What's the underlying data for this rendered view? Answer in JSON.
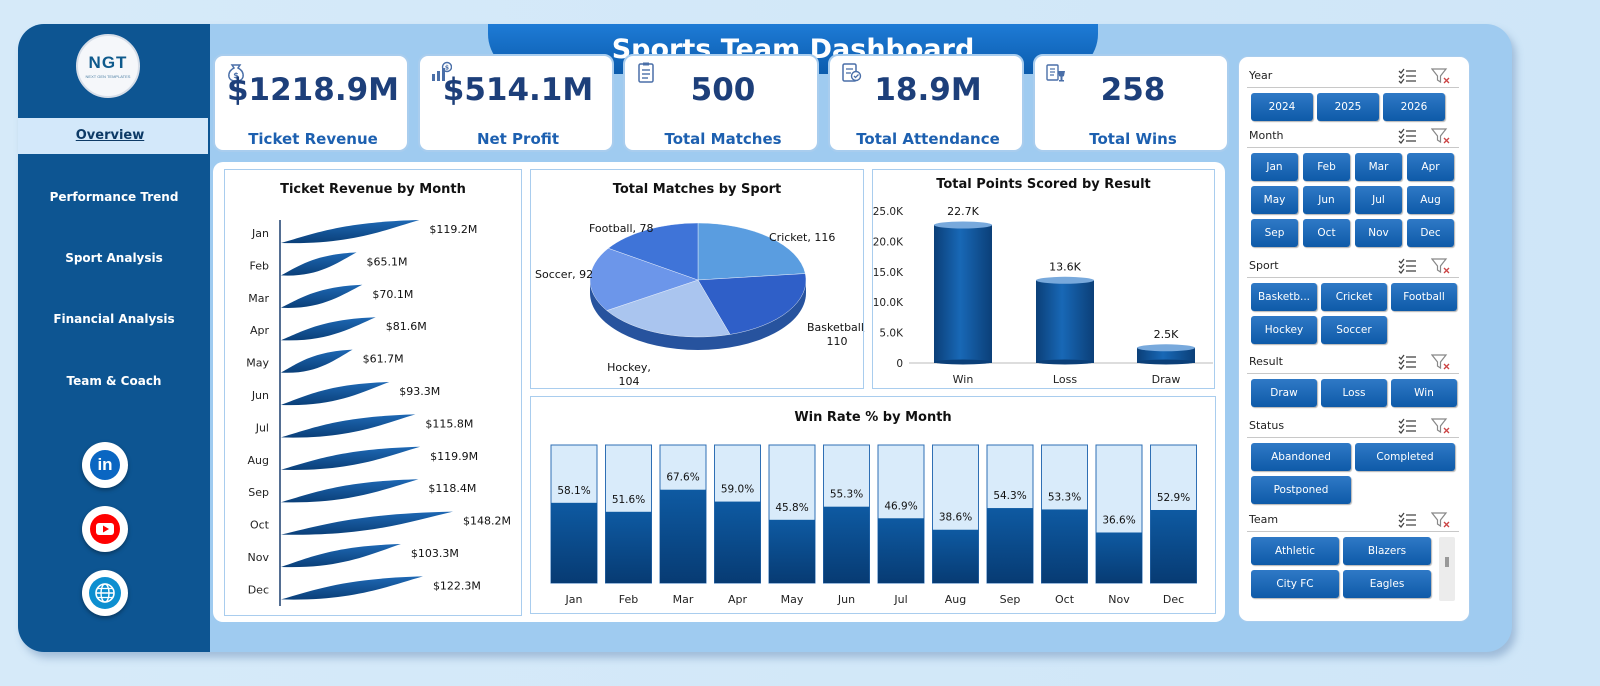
{
  "header": {
    "title": "Sports Team Dashboard"
  },
  "logo": {
    "text": "NGT",
    "subtext": "NEXT GEN TEMPLATES"
  },
  "nav": [
    {
      "label": "Overview",
      "active": true
    },
    {
      "label": "Performance Trend"
    },
    {
      "label": "Sport Analysis"
    },
    {
      "label": "Financial Analysis"
    },
    {
      "label": "Team & Coach"
    }
  ],
  "social": [
    {
      "icon": "linkedin-icon",
      "text": "in",
      "color": "#0a66c2"
    },
    {
      "icon": "youtube-icon",
      "color": "#ff0000"
    },
    {
      "icon": "globe-icon",
      "color": "#0d8fd0"
    }
  ],
  "kpis": [
    {
      "value": "$1218.9M",
      "label": "Ticket Revenue",
      "icon": "money-bag-icon"
    },
    {
      "value": "$514.1M",
      "label": "Net Profit",
      "icon": "profit-chart-icon"
    },
    {
      "value": "500",
      "label": "Total Matches",
      "icon": "clipboard-icon"
    },
    {
      "value": "18.9M",
      "label": "Total Attendance",
      "icon": "attendance-report-icon"
    },
    {
      "value": "258",
      "label": "Total Wins",
      "icon": "trophy-list-icon"
    }
  ],
  "charts": {
    "revenue": {
      "type": "bar",
      "title": "Ticket Revenue  by Month",
      "categories": [
        "Jan",
        "Feb",
        "Mar",
        "Apr",
        "May",
        "Jun",
        "Jul",
        "Aug",
        "Sep",
        "Oct",
        "Nov",
        "Dec"
      ],
      "values": [
        119.2,
        65.1,
        70.1,
        81.6,
        61.7,
        93.3,
        115.8,
        119.9,
        118.4,
        148.2,
        103.3,
        122.3
      ],
      "labels": [
        "$119.2M",
        "$65.1M",
        "$70.1M",
        "$81.6M",
        "$61.7M",
        "$93.3M",
        "$115.8M",
        "$119.9M",
        "$118.4M",
        "$148.2M",
        "$103.3M",
        "$122.3M"
      ],
      "color": "#0d4f8f"
    },
    "matches": {
      "type": "pie",
      "title": "Total Matches by Sport",
      "slices": [
        {
          "name": "Cricket",
          "value": 116,
          "label": "Cricket, 116",
          "color": "#5a9de0"
        },
        {
          "name": "Basketball",
          "value": 110,
          "label": "Basketball,",
          "label2": "110",
          "color": "#2f5fc8"
        },
        {
          "name": "Hockey",
          "value": 104,
          "label": "Hockey,",
          "label2": "104",
          "color": "#aac5ef"
        },
        {
          "name": "Soccer",
          "value": 92,
          "label": "Soccer, 92",
          "color": "#6c96ea"
        },
        {
          "name": "Football",
          "value": 78,
          "label": "Football, 78",
          "color": "#3f74d8"
        }
      ]
    },
    "points": {
      "type": "bar",
      "title": "Total Points Scored by Result",
      "categories": [
        "Win",
        "Loss",
        "Draw"
      ],
      "values": [
        22.7,
        13.6,
        2.5
      ],
      "labels": [
        "22.7K",
        "13.6K",
        "2.5K"
      ],
      "yticks": [
        "0",
        "5.0K",
        "10.0K",
        "15.0K",
        "20.0K",
        "25.0K"
      ],
      "ylim": [
        0,
        25
      ]
    },
    "winrate": {
      "type": "bar",
      "title": "Win Rate % by Month",
      "categories": [
        "Jan",
        "Feb",
        "Mar",
        "Apr",
        "May",
        "Jun",
        "Jul",
        "Aug",
        "Sep",
        "Oct",
        "Nov",
        "Dec"
      ],
      "values": [
        58.1,
        51.6,
        67.6,
        59.0,
        45.8,
        55.3,
        46.9,
        38.6,
        54.3,
        53.3,
        36.6,
        52.9
      ],
      "labels": [
        "58.1%",
        "51.6%",
        "67.6%",
        "59.0%",
        "45.8%",
        "55.3%",
        "46.9%",
        "38.6%",
        "54.3%",
        "53.3%",
        "36.6%",
        "52.9%"
      ],
      "ylim": [
        0,
        100
      ]
    }
  },
  "slicers": [
    {
      "title": "Year",
      "buttons": [
        "2024",
        "2025",
        "2026"
      ]
    },
    {
      "title": "Month",
      "buttons": [
        "Jan",
        "Feb",
        "Mar",
        "Apr",
        "May",
        "Jun",
        "Jul",
        "Aug",
        "Sep",
        "Oct",
        "Nov",
        "Dec"
      ]
    },
    {
      "title": "Sport",
      "buttons": [
        "Basketb...",
        "Cricket",
        "Football",
        "Hockey",
        "Soccer"
      ]
    },
    {
      "title": "Result",
      "buttons": [
        "Draw",
        "Loss",
        "Win"
      ]
    },
    {
      "title": "Status",
      "buttons": [
        "Abandoned",
        "Completed",
        "Postponed"
      ]
    },
    {
      "title": "Team",
      "buttons": [
        "Athletic",
        "Blazers",
        "City FC",
        "Eagles"
      ]
    }
  ]
}
